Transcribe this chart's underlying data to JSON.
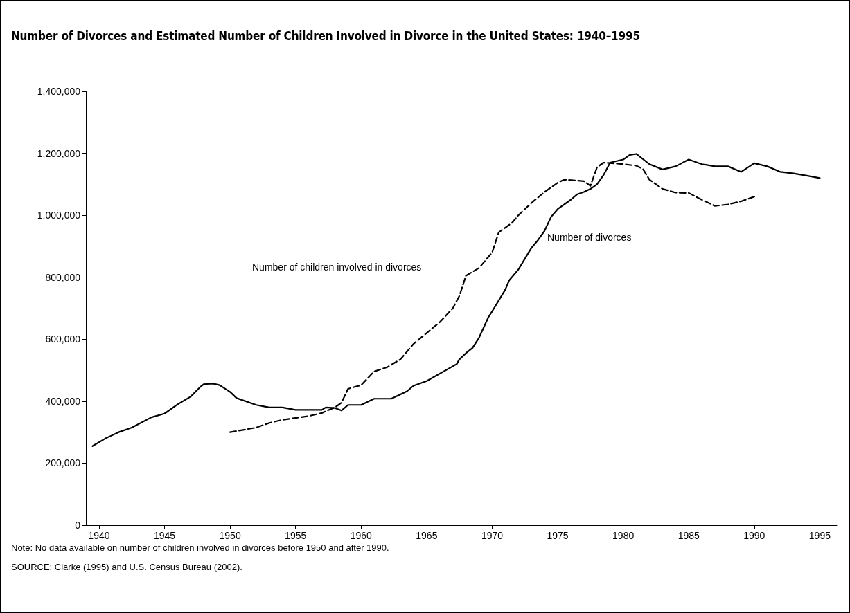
{
  "chart_data": {
    "type": "line",
    "title": "Number of Divorces and Estimated Number of Children Involved in Divorce in the United States: 1940–1995",
    "xlim": [
      1939,
      1996.3
    ],
    "xticks": [
      1940,
      1945,
      1950,
      1955,
      1960,
      1965,
      1970,
      1975,
      1980,
      1985,
      1990,
      1995
    ],
    "ylim": [
      0,
      1400000
    ],
    "yticks": [
      {
        "value": 0,
        "label": "0"
      },
      {
        "value": 200000,
        "label": "200,000"
      },
      {
        "value": 400000,
        "label": "400,000"
      },
      {
        "value": 600000,
        "label": "600,000"
      },
      {
        "value": 800000,
        "label": "800,000"
      },
      {
        "value": 1000000,
        "label": "1,000,000"
      },
      {
        "value": 1200000,
        "label": "1,200,000"
      },
      {
        "value": 1400000,
        "label": "1,400,000"
      }
    ],
    "grid": false,
    "marker": "none",
    "series": [
      {
        "color": "#000000",
        "line_style": "solid",
        "x": [
          1939.5,
          1940.5,
          1941,
          1941.5,
          1942.5,
          1944,
          1945,
          1946,
          1947,
          1947.7,
          1948,
          1948.7,
          1949.2,
          1950,
          1950.5,
          1952,
          1953,
          1954,
          1955,
          1957,
          1957.3,
          1958,
          1958.5,
          1959,
          1960,
          1961,
          1962.3,
          1963.5,
          1964,
          1965,
          1967.3,
          1967.5,
          1968,
          1968.5,
          1969,
          1969.7,
          1970,
          1971,
          1971.3,
          1972,
          1972.5,
          1973,
          1973.5,
          1974,
          1974.5,
          1975,
          1976,
          1976.5,
          1977,
          1977.5,
          1978,
          1978.5,
          1979,
          1980,
          1980.5,
          1981,
          1982,
          1983,
          1984,
          1985,
          1986,
          1987,
          1988,
          1989,
          1990,
          1991,
          1992,
          1993,
          1994,
          1995
        ],
        "values": [
          255000,
          280000,
          290000,
          300000,
          315000,
          348000,
          360000,
          390000,
          415000,
          445000,
          455000,
          457000,
          452000,
          430000,
          410000,
          388000,
          380000,
          380000,
          372000,
          372000,
          380000,
          378000,
          370000,
          388000,
          388000,
          408000,
          408000,
          432000,
          450000,
          465000,
          520000,
          535000,
          555000,
          572000,
          605000,
          670000,
          690000,
          760000,
          790000,
          825000,
          860000,
          895000,
          920000,
          950000,
          995000,
          1020000,
          1050000,
          1068000,
          1075000,
          1085000,
          1100000,
          1130000,
          1170000,
          1180000,
          1195000,
          1198000,
          1165000,
          1148000,
          1158000,
          1180000,
          1165000,
          1158000,
          1158000,
          1140000,
          1168000,
          1158000,
          1140000,
          1135000,
          1128000,
          1120000
        ]
      },
      {
        "color": "#000000",
        "line_style": "dashed",
        "x": [
          1950,
          1952,
          1953,
          1954,
          1955,
          1956,
          1957,
          1958,
          1958.5,
          1959,
          1960,
          1961,
          1962,
          1963,
          1964,
          1965,
          1966,
          1967,
          1967.5,
          1968,
          1969,
          1969.5,
          1970,
          1970.5,
          1971.5,
          1972,
          1973,
          1974,
          1975,
          1975.5,
          1977,
          1977.5,
          1978,
          1978.5,
          1980,
          1981,
          1981.5,
          1982,
          1983,
          1984,
          1985,
          1986,
          1987,
          1988,
          1989,
          1990
        ],
        "values": [
          300000,
          315000,
          330000,
          340000,
          346000,
          352000,
          362000,
          380000,
          395000,
          440000,
          452000,
          496000,
          510000,
          535000,
          585000,
          620000,
          655000,
          700000,
          740000,
          805000,
          830000,
          855000,
          880000,
          945000,
          975000,
          1000000,
          1040000,
          1075000,
          1105000,
          1115000,
          1110000,
          1095000,
          1155000,
          1170000,
          1165000,
          1160000,
          1150000,
          1115000,
          1085000,
          1073000,
          1072000,
          1050000,
          1030000,
          1035000,
          1045000,
          1060000
        ]
      }
    ],
    "annotations": [
      "Number of divorces",
      "Number of children involved in divorces",
      "Note: No data available on number of children involved in divorces before 1950 and after 1990.",
      "SOURCE: Clarke (1995) and U.S. Census Bureau (2002)."
    ]
  }
}
